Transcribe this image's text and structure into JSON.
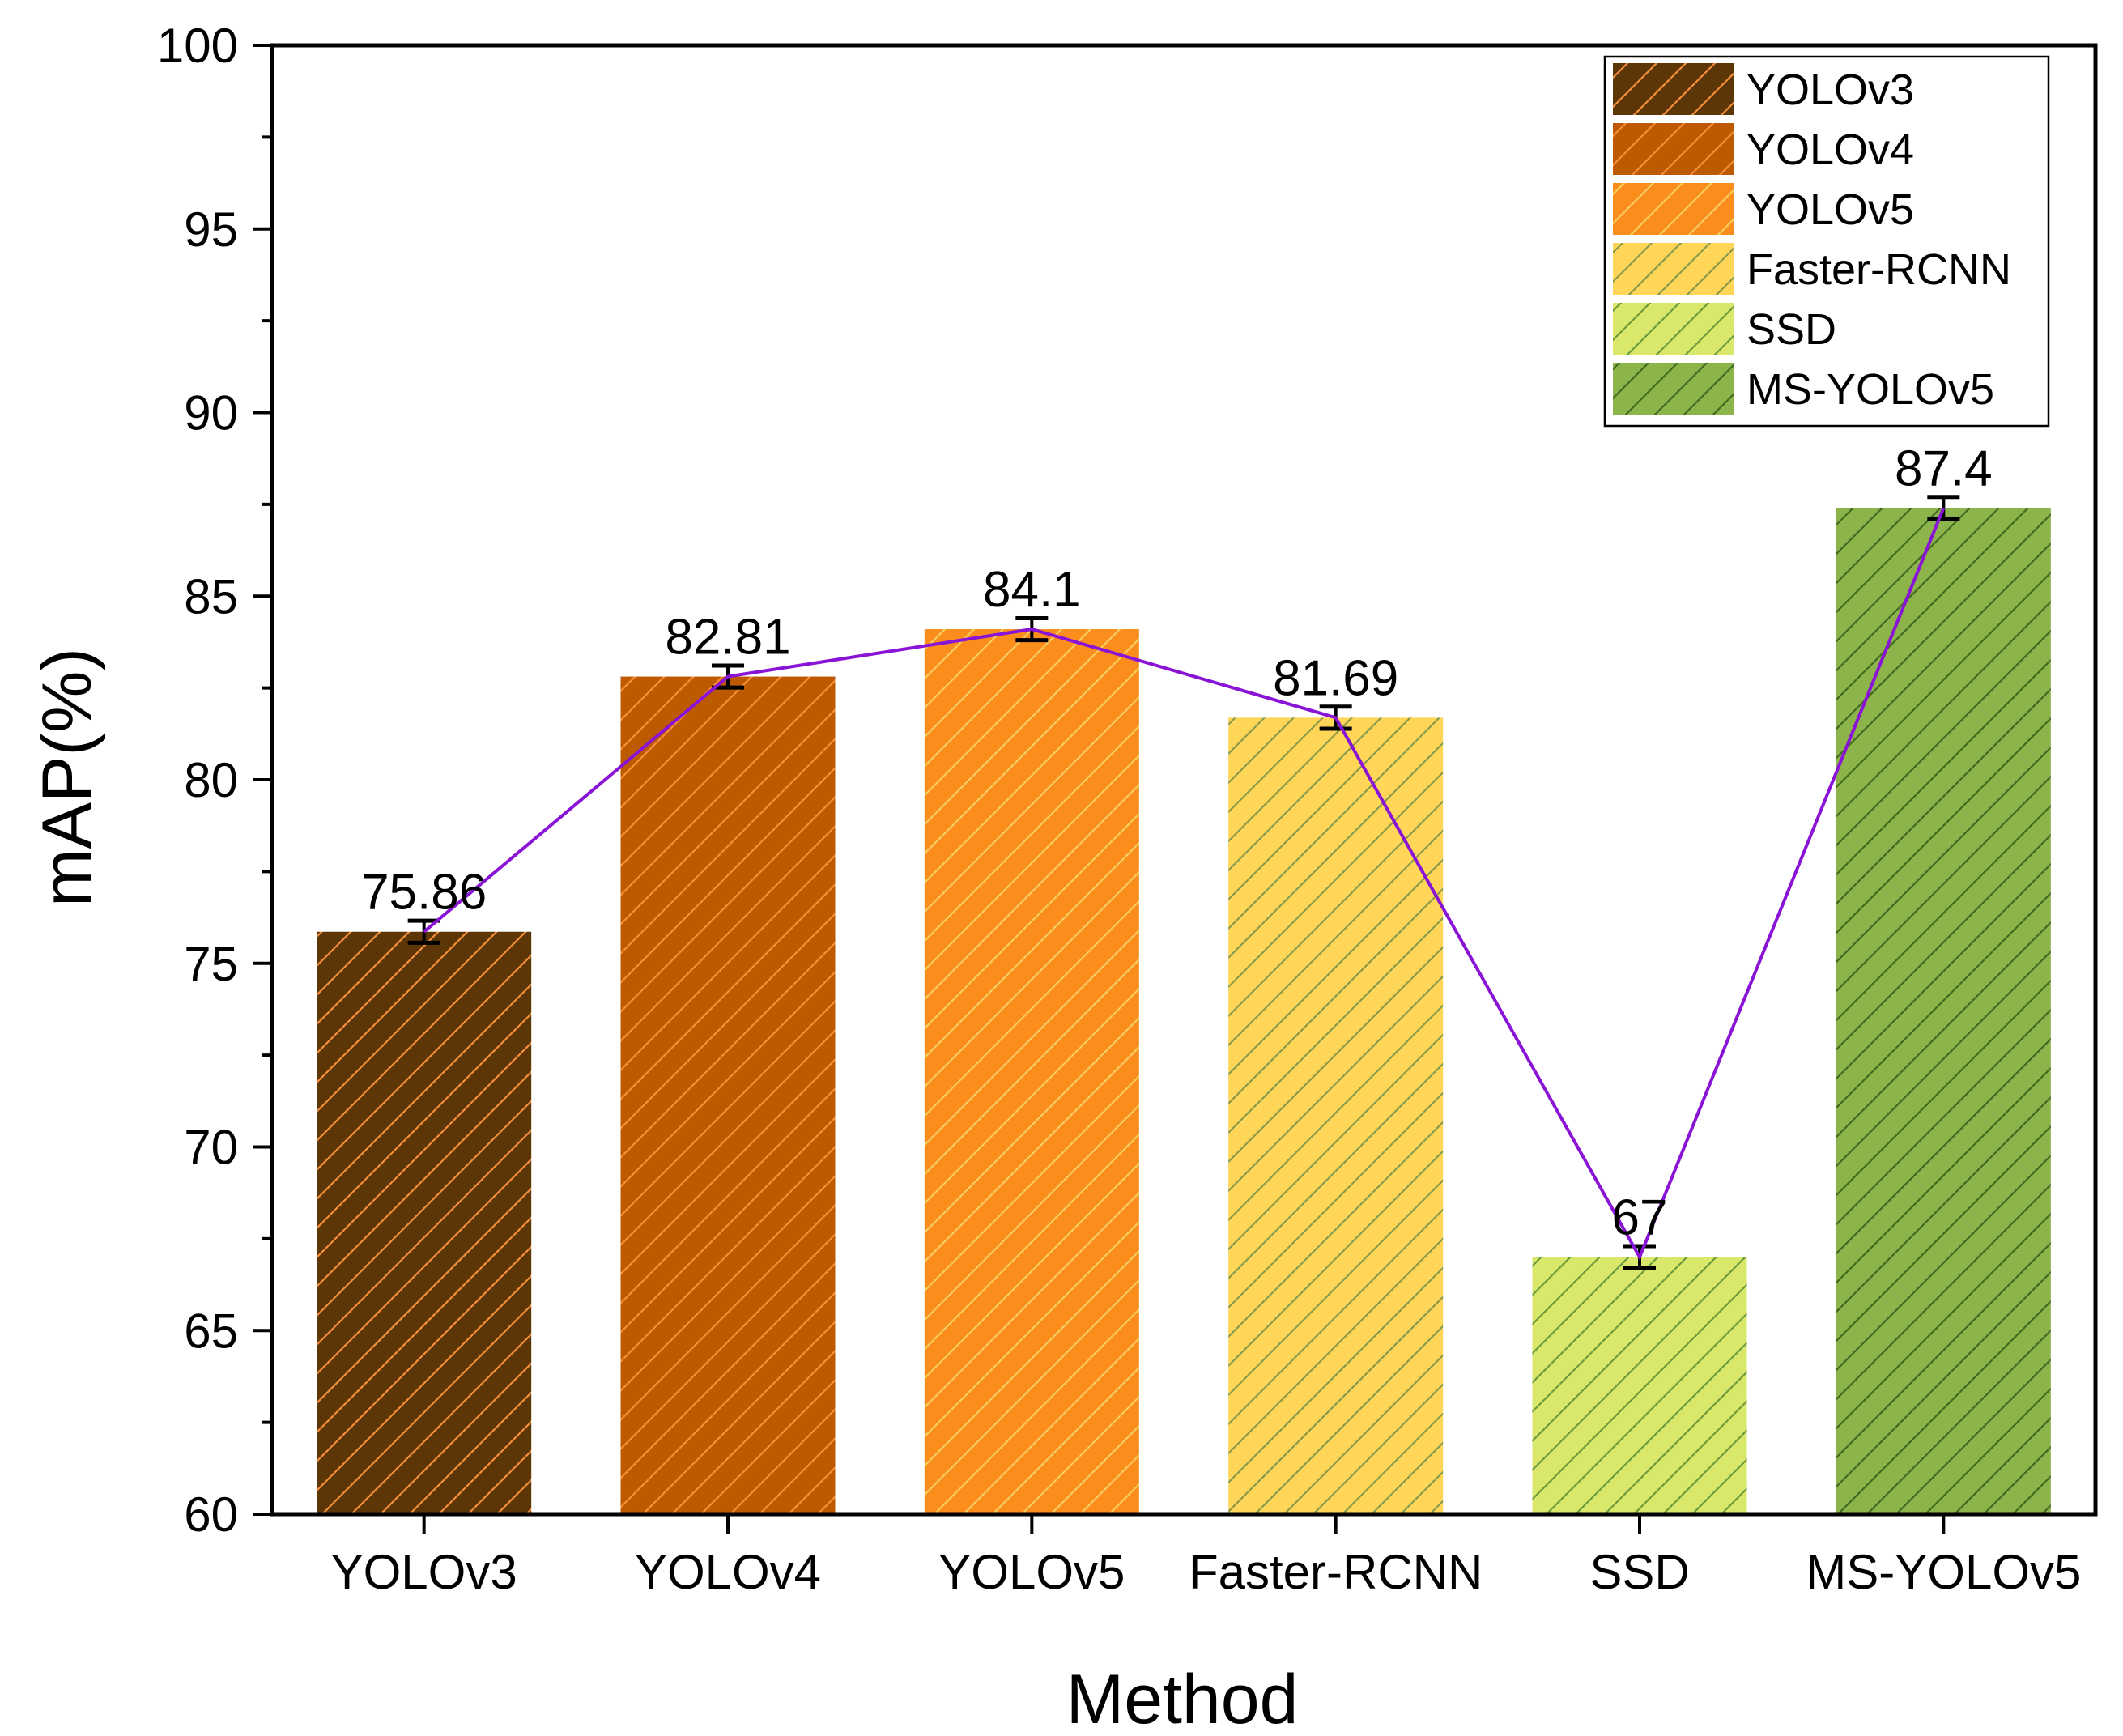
{
  "chart_data": {
    "type": "bar",
    "xlabel": "Method",
    "ylabel": "mAP(%)",
    "ylim": [
      60,
      100
    ],
    "yticks": [
      "60",
      "65",
      "70",
      "75",
      "80",
      "85",
      "90",
      "95",
      "100"
    ],
    "legend_position": "top-right",
    "categories": [
      "YOLOv3",
      "YOLOv4",
      "YOLOv5",
      "Faster-RCNN",
      "SSD",
      "MS-YOLOv5"
    ],
    "values": [
      75.86,
      82.81,
      84.1,
      81.69,
      67,
      87.4
    ],
    "value_labels": [
      "75.86",
      "82.81",
      "84.1",
      "81.69",
      "67",
      "87.4"
    ],
    "error": [
      0.3,
      0.3,
      0.3,
      0.3,
      0.3,
      0.3
    ],
    "bar_colors": [
      "#5c3606",
      "#bd5a00",
      "#fb8d1c",
      "#ffd657",
      "#d9e86b",
      "#8db44a"
    ],
    "hatch_colors": [
      "#f58f3a",
      "#f58f3a",
      "#f7ce5e",
      "#8a9a4a",
      "#6e9a3c",
      "#3f6a1f"
    ],
    "line_color": "#8a14d6",
    "grid": false
  }
}
